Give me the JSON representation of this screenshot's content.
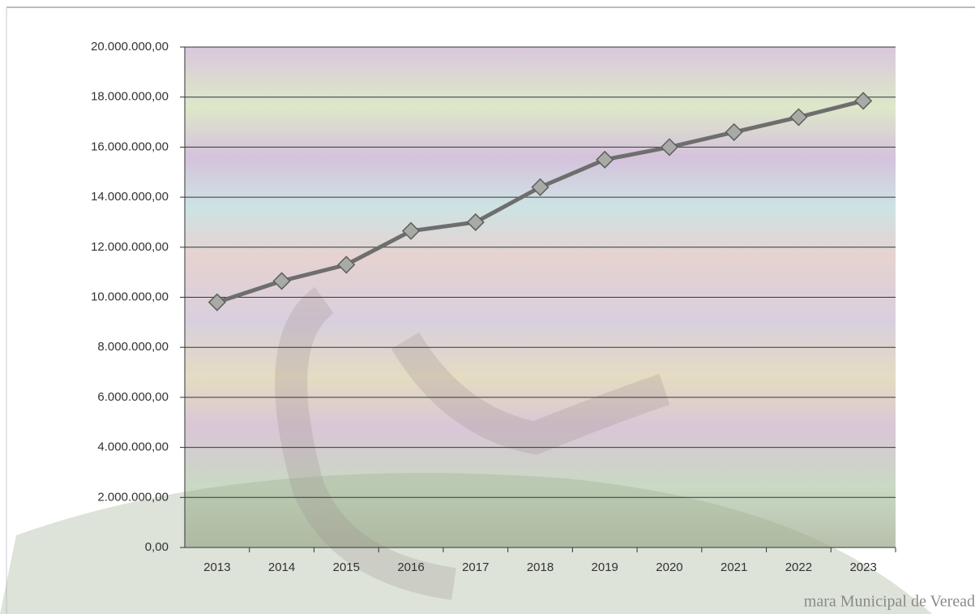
{
  "chart_data": {
    "type": "line",
    "categories": [
      "2013",
      "2014",
      "2015",
      "2016",
      "2017",
      "2018",
      "2019",
      "2020",
      "2021",
      "2022",
      "2023"
    ],
    "values": [
      9800000,
      10650000,
      11300000,
      12650000,
      13000000,
      14400000,
      15500000,
      16000000,
      16600000,
      17200000,
      17850000
    ],
    "color": "#6e6e6e",
    "marker_color": "#a8aaa6",
    "ylim": [
      0,
      20000000
    ],
    "yticks": [
      {
        "value": 0,
        "label": "0,00"
      },
      {
        "value": 2000000,
        "label": "2.000.000,00"
      },
      {
        "value": 4000000,
        "label": "4.000.000,00"
      },
      {
        "value": 6000000,
        "label": "6.000.000,00"
      },
      {
        "value": 8000000,
        "label": "8.000.000,00"
      },
      {
        "value": 10000000,
        "label": "10.000.000,00"
      },
      {
        "value": 12000000,
        "label": "12.000.000,00"
      },
      {
        "value": 14000000,
        "label": "14.000.000,00"
      },
      {
        "value": 16000000,
        "label": "16.000.000,00"
      },
      {
        "value": 18000000,
        "label": "18.000.000,00"
      },
      {
        "value": 20000000,
        "label": "20.000.000,00"
      }
    ],
    "grid": true,
    "footer": "mara Municipal de Veread"
  }
}
